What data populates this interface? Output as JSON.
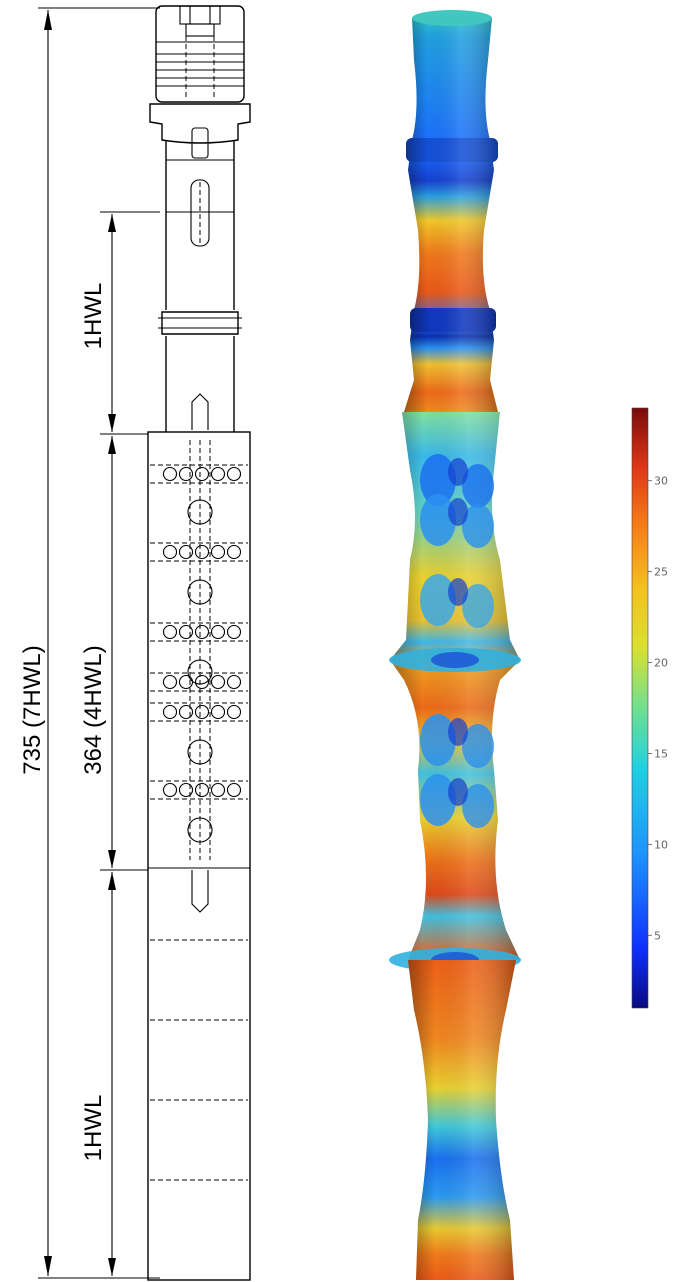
{
  "drawing": {
    "dimensions": [
      {
        "label": "735 (7HWL)"
      },
      {
        "label": "1HWL"
      },
      {
        "label": "364 (4HWL)"
      },
      {
        "label": "1HWL"
      }
    ]
  },
  "colorbar": {
    "ticks": [
      "30",
      "25",
      "20",
      "15",
      "10",
      "5"
    ],
    "min": 1,
    "max": 34,
    "colors": [
      "#08087a",
      "#1a3cff",
      "#1e90ff",
      "#1fd1e0",
      "#55e0a0",
      "#c8e040",
      "#f0d020",
      "#f79a1a",
      "#e8501a",
      "#b81414",
      "#7a0a0a"
    ]
  }
}
